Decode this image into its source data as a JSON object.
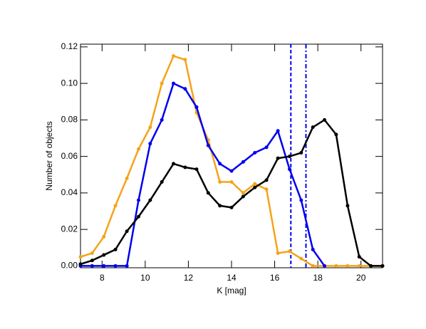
{
  "chart_data": {
    "type": "line",
    "xlabel": "K [mag]",
    "ylabel": "Number of objects",
    "x": [
      7.0,
      7.54,
      8.08,
      8.62,
      9.15,
      9.69,
      10.23,
      10.77,
      11.31,
      11.85,
      12.38,
      12.92,
      13.46,
      14.0,
      14.54,
      15.08,
      15.62,
      16.15,
      16.69,
      17.23,
      17.77,
      18.31,
      18.85,
      19.38,
      19.92,
      20.46,
      21.0
    ],
    "series": [
      {
        "color": "#f5a31a",
        "values": [
          0.005,
          0.007,
          0.016,
          0.033,
          0.048,
          0.064,
          0.076,
          0.1,
          0.115,
          0.113,
          0.084,
          0.069,
          0.046,
          0.046,
          0.04,
          0.045,
          0.042,
          0.007,
          0.008,
          0.004,
          0,
          0,
          0,
          0,
          0,
          0,
          0
        ]
      },
      {
        "color": "#0000ee",
        "values": [
          0,
          0,
          0,
          0,
          0,
          0.036,
          0.067,
          0.08,
          0.1,
          0.097,
          0.087,
          0.066,
          0.056,
          0.052,
          0.057,
          0.062,
          0.065,
          0.074,
          0.053,
          0.036,
          0.009,
          0,
          null,
          null,
          null,
          null,
          null
        ]
      },
      {
        "color": "#000000",
        "values": [
          0.001,
          0.003,
          0.006,
          0.009,
          0.019,
          0.027,
          0.036,
          0.046,
          0.056,
          0.054,
          0.053,
          0.04,
          0.033,
          0.032,
          0.038,
          0.043,
          0.047,
          0.059,
          0.06,
          0.062,
          0.076,
          0.08,
          0.072,
          0.033,
          0.005,
          0,
          0
        ]
      }
    ],
    "vlines": [
      {
        "value": 16.75,
        "color": "#0000ee",
        "style": "dashed"
      },
      {
        "value": 17.45,
        "color": "#0000ee",
        "style": "dashdot"
      }
    ],
    "xlim": [
      7,
      21
    ],
    "xticks": [
      8,
      10,
      12,
      14,
      16,
      18,
      20
    ],
    "ylim": [
      -0.001,
      0.1215
    ],
    "yticks": [
      {
        "value": 0,
        "label": "0.00"
      },
      {
        "value": 0.02,
        "label": "0.02"
      },
      {
        "value": 0.04,
        "label": "0.04"
      },
      {
        "value": 0.06,
        "label": "0.06"
      },
      {
        "value": 0.08,
        "label": "0.08"
      },
      {
        "value": 0.1,
        "label": "0.10"
      },
      {
        "value": 0.12,
        "label": "0.12"
      }
    ]
  }
}
